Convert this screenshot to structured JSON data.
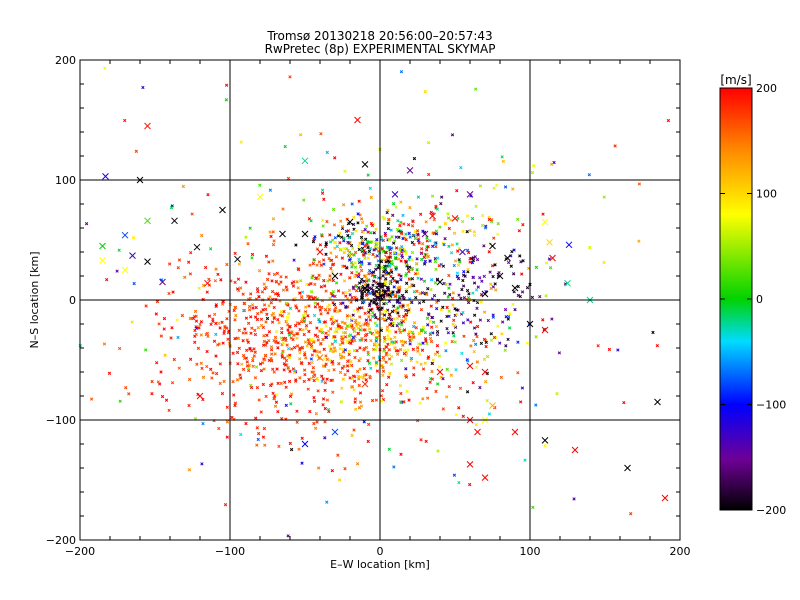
{
  "chart_data": {
    "type": "scatter",
    "title": "Tromsø 20130218 20:56:00–20:57:43",
    "subtitle": "RwPretec (8p) EXPERIMENTAL SKYMAP",
    "xlabel": "E–W location [km]",
    "ylabel": "N–S location [km]",
    "xlim": [
      -200,
      200
    ],
    "ylim": [
      -200,
      200
    ],
    "xticks": [
      -200,
      -100,
      0,
      100,
      200
    ],
    "yticks": [
      -200,
      -100,
      0,
      100,
      200
    ],
    "grid": true,
    "colorbar": {
      "label": "[m/s]",
      "min": -200,
      "max": 200,
      "ticks": [
        200,
        100,
        0,
        -100,
        -200
      ],
      "placement": "right"
    },
    "clusters": [
      {
        "cx": -45,
        "cy": -30,
        "sx": 45,
        "sy": 35,
        "n": 620,
        "vmean": 185,
        "vsd": 20,
        "seed": 11
      },
      {
        "cx": -15,
        "cy": -30,
        "sx": 30,
        "sy": 22,
        "n": 230,
        "vmean": 115,
        "vsd": 30,
        "seed": 12
      },
      {
        "cx": 0,
        "cy": 40,
        "sx": 22,
        "sy": 16,
        "n": 300,
        "vmean": 0,
        "vsd": 140,
        "seed": 13
      },
      {
        "cx": 2,
        "cy": 5,
        "sx": 10,
        "sy": 10,
        "n": 140,
        "vmean": -190,
        "vsd": 15,
        "seed": 14
      },
      {
        "cx": 60,
        "cy": 10,
        "sx": 30,
        "sy": 20,
        "n": 130,
        "vmean": -170,
        "vsd": 35,
        "seed": 15
      },
      {
        "cx": 20,
        "cy": -20,
        "sx": 40,
        "sy": 30,
        "n": 180,
        "vmean": 30,
        "vsd": 90,
        "seed": 16
      },
      {
        "cx": -90,
        "cy": -40,
        "sx": 40,
        "sy": 45,
        "n": 140,
        "vmean": 180,
        "vsd": 25,
        "seed": 17
      },
      {
        "cx": 30,
        "cy": 60,
        "sx": 30,
        "sy": 20,
        "n": 100,
        "vmean": 60,
        "vsd": 130,
        "seed": 18
      },
      {
        "cx": 0,
        "cy": 0,
        "sx": 110,
        "sy": 90,
        "n": 220,
        "vmean": 60,
        "vsd": 140,
        "seed": 19
      }
    ],
    "crosses": [
      [
        -155,
        145,
        190
      ],
      [
        -183,
        103,
        -110
      ],
      [
        -15,
        150,
        200
      ],
      [
        -50,
        116,
        -20
      ],
      [
        -10,
        113,
        -200
      ],
      [
        20,
        108,
        -150
      ],
      [
        60,
        88,
        -150
      ],
      [
        10,
        88,
        -130
      ],
      [
        -80,
        86,
        80
      ],
      [
        -105,
        75,
        -200
      ],
      [
        -137,
        66,
        -200
      ],
      [
        -155,
        66,
        20
      ],
      [
        -170,
        54,
        -80
      ],
      [
        -185,
        33,
        80
      ],
      [
        -170,
        25,
        80
      ],
      [
        -155,
        32,
        -200
      ],
      [
        -122,
        44,
        -200
      ],
      [
        -95,
        34,
        -200
      ],
      [
        -115,
        14,
        200
      ],
      [
        -145,
        15,
        -150
      ],
      [
        -165,
        37,
        -130
      ],
      [
        -185,
        45,
        0
      ],
      [
        110,
        65,
        80
      ],
      [
        113,
        48,
        100
      ],
      [
        126,
        46,
        -100
      ],
      [
        115,
        35,
        200
      ],
      [
        125,
        14,
        -20
      ],
      [
        140,
        0,
        -20
      ],
      [
        35,
        70,
        200
      ],
      [
        50,
        68,
        200
      ],
      [
        75,
        45,
        -200
      ],
      [
        85,
        35,
        -200
      ],
      [
        90,
        10,
        -200
      ],
      [
        80,
        20,
        -200
      ],
      [
        100,
        -20,
        -200
      ],
      [
        110,
        -25,
        200
      ],
      [
        60,
        -55,
        200
      ],
      [
        70,
        -60,
        200
      ],
      [
        -40,
        -48,
        150
      ],
      [
        40,
        -60,
        200
      ],
      [
        -50,
        -120,
        -100
      ],
      [
        -30,
        -110,
        -80
      ],
      [
        60,
        -100,
        200
      ],
      [
        70,
        -100,
        80
      ],
      [
        75,
        -88,
        120
      ],
      [
        65,
        -110,
        200
      ],
      [
        90,
        -110,
        200
      ],
      [
        130,
        -125,
        200
      ],
      [
        110,
        -117,
        -200
      ],
      [
        60,
        -137,
        200
      ],
      [
        70,
        -148,
        200
      ],
      [
        165,
        -140,
        -200
      ],
      [
        185,
        -85,
        -200
      ],
      [
        190,
        -165,
        200
      ],
      [
        -10,
        -70,
        180
      ],
      [
        -30,
        20,
        -200
      ],
      [
        -50,
        55,
        -200
      ],
      [
        -65,
        55,
        -200
      ],
      [
        -20,
        65,
        -200
      ],
      [
        30,
        55,
        -150
      ],
      [
        55,
        40,
        -130
      ],
      [
        -40,
        40,
        200
      ],
      [
        5,
        35,
        180
      ],
      [
        -10,
        10,
        -200
      ],
      [
        40,
        15,
        -200
      ],
      [
        70,
        5,
        -200
      ],
      [
        -120,
        -80,
        200
      ],
      [
        -160,
        100,
        -200
      ]
    ]
  }
}
